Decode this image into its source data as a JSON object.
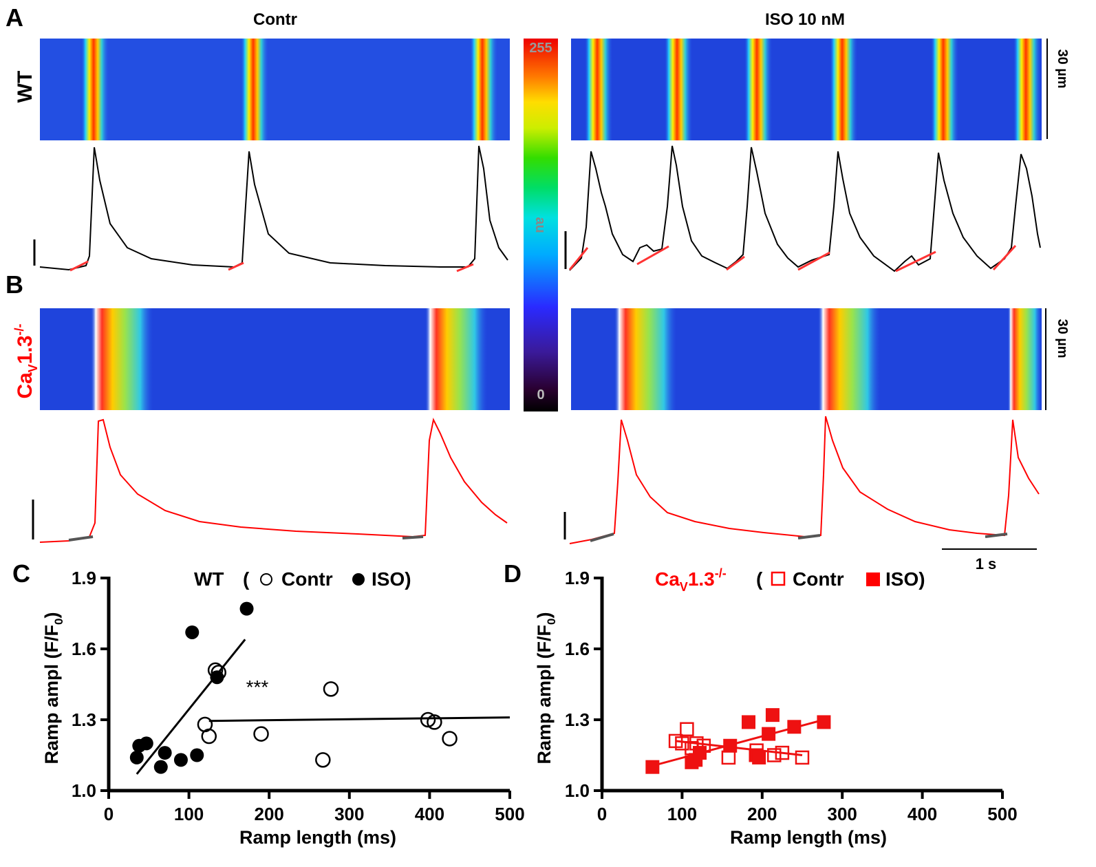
{
  "panel_labels": {
    "A": "A",
    "B": "B",
    "C": "C",
    "D": "D"
  },
  "headers": {
    "left": "Contr",
    "right": "ISO 10 nM"
  },
  "rows": {
    "A": {
      "label": "WT",
      "color": "#000000"
    },
    "B": {
      "label_main": "Ca",
      "label_sub": "V",
      "label_rest": "1.3",
      "label_sup": "-/-",
      "color": "#ff0000"
    }
  },
  "colorbar": {
    "top_label": "255",
    "bottom_label": "0",
    "unit": "au"
  },
  "scale_labels": {
    "vertical": "30 µm",
    "time": "1 s"
  },
  "colors": {
    "trace_wt": "#000000",
    "trace_ko": "#ff0000",
    "fit": "#ff3333",
    "mark_wt": "#000000",
    "mark_ko": "#ee1111"
  },
  "chart_data": [
    {
      "type": "scatter",
      "title": "WT ( ○ Contr ● ISO)",
      "title_parts": {
        "name": "WT",
        "open": "(",
        "contr": "Contr",
        "iso": "ISO)"
      },
      "xlabel": "Ramp length (ms)",
      "ylabel": "Ramp ampl (F/F",
      "ylabel_sub": "0",
      "xlim": [
        0,
        500
      ],
      "ylim": [
        1.0,
        1.9
      ],
      "xticks": [
        "0",
        "100",
        "200",
        "300",
        "400",
        "500"
      ],
      "yticks": [
        "1.0",
        "1.3",
        "1.6",
        "1.9"
      ],
      "annotation": "***",
      "series": [
        {
          "name": "Contr",
          "marker": "open-circle",
          "x": [
            120,
            125,
            133,
            137,
            190,
            267,
            277,
            398,
            406,
            425
          ],
          "y": [
            1.28,
            1.23,
            1.51,
            1.5,
            1.24,
            1.13,
            1.43,
            1.3,
            1.29,
            1.22
          ],
          "fit": {
            "x": [
              125,
              500
            ],
            "y": [
              1.295,
              1.31
            ]
          }
        },
        {
          "name": "ISO",
          "marker": "filled-circle",
          "x": [
            35,
            38,
            47,
            65,
            70,
            90,
            104,
            110,
            135,
            172
          ],
          "y": [
            1.14,
            1.19,
            1.2,
            1.1,
            1.16,
            1.13,
            1.67,
            1.15,
            1.48,
            1.77
          ],
          "fit": {
            "x": [
              35,
              170
            ],
            "y": [
              1.07,
              1.64
            ]
          }
        }
      ]
    },
    {
      "type": "scatter",
      "title": "CaV1.3-/- ( □ Contr ■ ISO)",
      "title_parts": {
        "name_main": "Ca",
        "name_sub": "V",
        "name_rest": "1.3",
        "name_sup": "-/-",
        "open": "(",
        "contr": "Contr",
        "iso": "ISO)"
      },
      "xlabel": "Ramp length (ms)",
      "ylabel": "Ramp ampl (F/F",
      "ylabel_sub": "0",
      "xlim": [
        0,
        500
      ],
      "ylim": [
        1.0,
        1.9
      ],
      "xticks": [
        "0",
        "100",
        "200",
        "300",
        "400",
        "500"
      ],
      "yticks": [
        "1.0",
        "1.3",
        "1.6",
        "1.9"
      ],
      "series": [
        {
          "name": "Contr",
          "marker": "open-square",
          "x": [
            92,
            100,
            106,
            112,
            118,
            127,
            158,
            193,
            215,
            225,
            250
          ],
          "y": [
            1.21,
            1.2,
            1.26,
            1.18,
            1.2,
            1.19,
            1.14,
            1.17,
            1.15,
            1.16,
            1.14
          ],
          "fit": {
            "x": [
              92,
              250
            ],
            "y": [
              1.21,
              1.15
            ]
          }
        },
        {
          "name": "ISO",
          "marker": "filled-square",
          "x": [
            63,
            112,
            117,
            122,
            160,
            183,
            192,
            196,
            208,
            213,
            240,
            277
          ],
          "y": [
            1.1,
            1.12,
            1.13,
            1.16,
            1.19,
            1.29,
            1.15,
            1.14,
            1.24,
            1.32,
            1.27,
            1.29
          ],
          "fit": {
            "x": [
              63,
              277
            ],
            "y": [
              1.105,
              1.3
            ]
          }
        }
      ]
    }
  ]
}
